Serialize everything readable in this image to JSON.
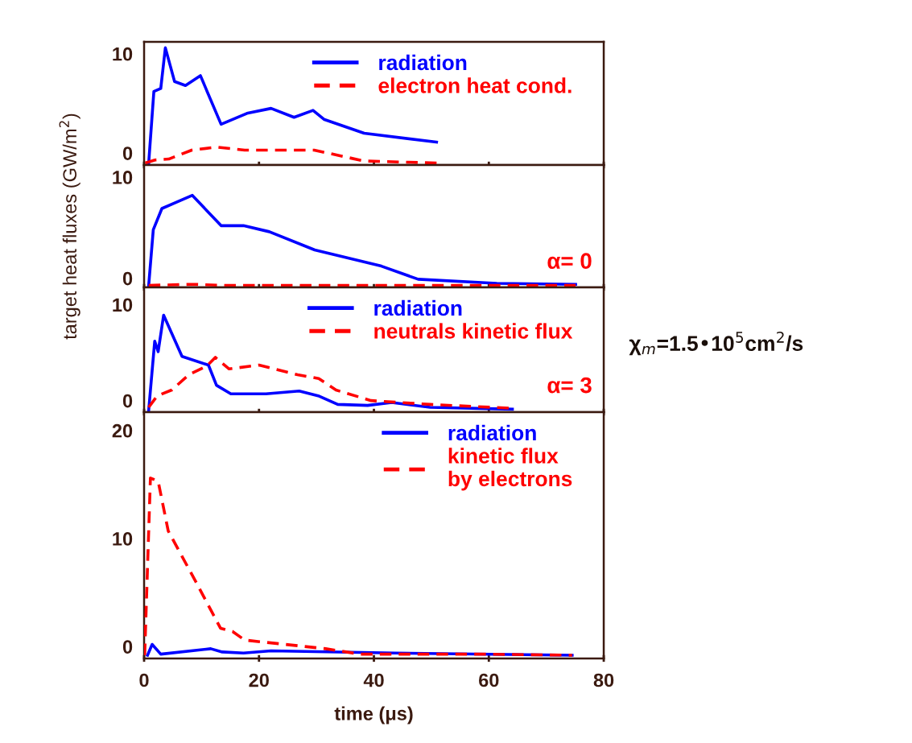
{
  "chart_data": [
    {
      "type": "line",
      "xlim": [
        0,
        80
      ],
      "xticks": [
        0,
        20,
        40,
        60,
        80
      ],
      "ylim": [
        -1.2,
        11.2
      ],
      "yticks": [
        0,
        10
      ],
      "tick_labels": "y",
      "legend": "top right",
      "series": [
        {
          "name": "radiation",
          "color": "#0000ff",
          "line_style": "solid",
          "x": [
            0.8,
            1.7,
            2.9,
            3.7,
            5.3,
            7.2,
            9.8,
            13.4,
            17.9,
            22.1,
            26.1,
            29.4,
            31.3,
            38.3,
            50.9
          ],
          "values": [
            -1.0,
            6.2,
            6.5,
            10.6,
            7.2,
            6.8,
            7.8,
            2.9,
            4.0,
            4.5,
            3.6,
            4.3,
            3.4,
            2.0,
            1.1
          ]
        },
        {
          "name": "electron heat cond.",
          "color": "#ff0000",
          "line_style": "dashed",
          "x": [
            0.2,
            1.9,
            4.3,
            8.3,
            12.6,
            17.5,
            29.6,
            38.3,
            51
          ],
          "values": [
            -1.0,
            -0.7,
            -0.6,
            0.3,
            0.6,
            0.3,
            0.3,
            -0.8,
            -1.0
          ]
        }
      ]
    },
    {
      "type": "line",
      "xlim": [
        0,
        80
      ],
      "xticks": [
        0,
        20,
        40,
        60,
        80
      ],
      "ylim": [
        -0.9,
        11.2
      ],
      "yticks": [
        0,
        10
      ],
      "tick_labels": "y",
      "ylabel": "target heat fluxes (GW/m$^{2}$)",
      "annotations": [
        "α= 0"
      ],
      "series": [
        {
          "color": "#0000ff",
          "line_style": "solid",
          "x": [
            0.8,
            1.6,
            3.1,
            8.4,
            13.4,
            17.3,
            21.8,
            29.7,
            41.3,
            47.7,
            61.4,
            75.1
          ],
          "values": [
            -0.7,
            4.8,
            6.9,
            8.2,
            5.2,
            5.2,
            4.6,
            2.8,
            1.2,
            -0.1,
            -0.5,
            -0.6
          ]
        },
        {
          "color": "#ff0000",
          "line_style": "dashed",
          "x": [
            0.8,
            8.8,
            13.4,
            75.1
          ],
          "values": [
            -0.7,
            -0.6,
            -0.7,
            -0.7
          ]
        }
      ]
    },
    {
      "type": "line",
      "xlim": [
        0,
        80
      ],
      "xticks": [
        0,
        20,
        40,
        60,
        80
      ],
      "ylim": [
        -1.2,
        11.8
      ],
      "yticks": [
        0,
        10
      ],
      "tick_labels": "y",
      "legend": "top right",
      "annotations": [
        "α= 3",
        "χ$_{m}$=1.5•10$^{5}$cm$^{2}$/s"
      ],
      "series": [
        {
          "name": "radiation",
          "color": "#0000ff",
          "line_style": "solid",
          "x": [
            0.8,
            1.85,
            2.45,
            3.4,
            6.6,
            11.2,
            12.6,
            15.1,
            21.2,
            27.0,
            30.3,
            33.7,
            38.9,
            43.1,
            49.8,
            64.1
          ],
          "values": [
            -1.0,
            6.2,
            5.1,
            8.9,
            4.6,
            3.7,
            1.6,
            0.7,
            0.7,
            1.0,
            0.5,
            -0.4,
            -0.5,
            -0.2,
            -0.7,
            -0.9
          ]
        },
        {
          "name": "neutrals kinetic flux",
          "color": "#ff0000",
          "line_style": "dashed",
          "x": [
            0.8,
            2.3,
            4.8,
            7.8,
            10.9,
            12.4,
            14.8,
            20.0,
            26.7,
            30.4,
            33.4,
            39.5,
            49.8,
            64.1
          ],
          "values": [
            -0.7,
            0.5,
            1.1,
            2.7,
            3.6,
            4.5,
            3.3,
            3.7,
            2.7,
            2.3,
            1.1,
            0.0,
            -0.4,
            -0.8
          ]
        }
      ]
    },
    {
      "type": "line",
      "xlim": [
        0,
        80
      ],
      "xticks": [
        0,
        20,
        40,
        60,
        80
      ],
      "ylim": [
        -1.1,
        21.7
      ],
      "yticks": [
        0,
        10,
        20
      ],
      "xlabel": "time (μs)",
      "legend": "top right",
      "series": [
        {
          "name": "radiation",
          "color": "#0000ff",
          "line_style": "solid",
          "x": [
            0.6,
            1.4,
            2.9,
            11.6,
            13.6,
            17.3,
            22.1,
            43.7,
            74.5
          ],
          "values": [
            -0.8,
            0.2,
            -0.7,
            -0.2,
            -0.5,
            -0.6,
            -0.4,
            -0.6,
            -0.8
          ]
        },
        {
          "name": "kinetic flux\nby electrons",
          "color": "#ff0000",
          "line_style": "dashed",
          "x": [
            0.1,
            1.1,
            2.45,
            4.2,
            9.0,
            13.3,
            15.4,
            17.5,
            31.6,
            37.6,
            58.5,
            74.5
          ],
          "values": [
            -0.8,
            15.6,
            15.3,
            10.7,
            6.0,
            1.7,
            1.4,
            0.6,
            -0.2,
            -0.7,
            -0.7,
            -0.8
          ]
        }
      ]
    }
  ]
}
